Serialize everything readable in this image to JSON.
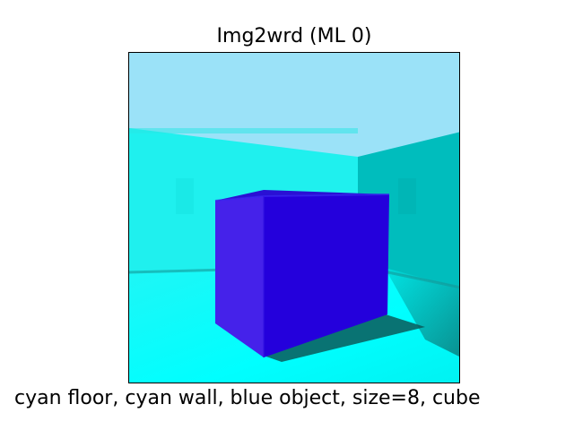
{
  "title": "Img2wrd (ML 0)",
  "caption": "cyan floor,  cyan wall,  blue object,  size=8,  cube",
  "scene": {
    "object_shape": "cube",
    "colors": {
      "sky": "#9be2f8",
      "wall_left": "#1ff0ee",
      "wall_right": "#00bdbd",
      "floor": "#00ffff",
      "cube_front": "#2400dc",
      "cube_side": "#4522ea",
      "cube_top": "#2a10d4",
      "shadow": "#0a5a5a"
    }
  }
}
